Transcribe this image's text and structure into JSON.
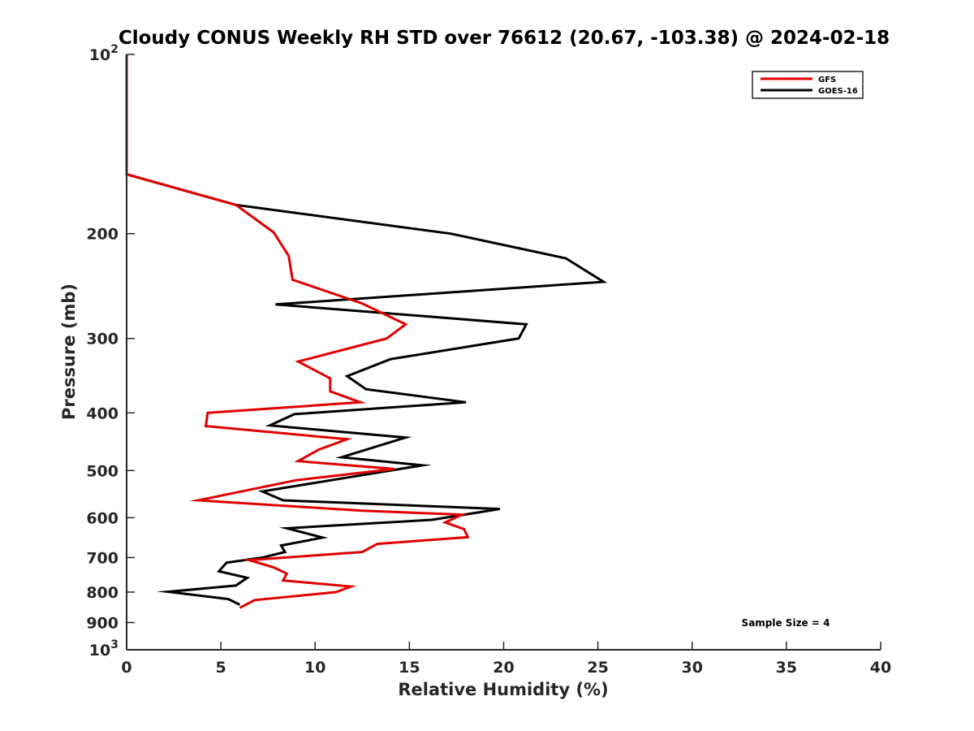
{
  "chart_data": {
    "type": "line",
    "title": "Cloudy CONUS Weekly RH STD over 76612 (20.67, -103.38) @ 2024-02-18",
    "xlabel": "Relative Humidity (%)",
    "ylabel": "Pressure (mb)",
    "xlim": [
      0,
      40
    ],
    "ylim": [
      1000,
      100
    ],
    "yscale": "log",
    "y_reversed": true,
    "grid": false,
    "x_ticks": [
      "0",
      "5",
      "10",
      "15",
      "20",
      "25",
      "30",
      "35",
      "40"
    ],
    "x_tick_values": [
      0,
      5,
      10,
      15,
      20,
      25,
      30,
      35,
      40
    ],
    "y_ticks": [
      {
        "value": 100,
        "base": "10",
        "exp": "2"
      },
      {
        "value": 200,
        "label": "200"
      },
      {
        "value": 300,
        "label": "300"
      },
      {
        "value": 400,
        "label": "400"
      },
      {
        "value": 500,
        "label": "500"
      },
      {
        "value": 600,
        "label": "600"
      },
      {
        "value": 700,
        "label": "700"
      },
      {
        "value": 800,
        "label": "800"
      },
      {
        "value": 900,
        "label": "900"
      },
      {
        "value": 1000,
        "base": "10",
        "exp": "3"
      }
    ],
    "legend": {
      "position": "top-right",
      "entries": [
        "GFS",
        "GOES-16"
      ]
    },
    "annotation": "Sample Size = 4",
    "series": [
      {
        "name": "GFS",
        "color": "#e00000",
        "points": [
          [
            0.0,
            100
          ],
          [
            0.0,
            159
          ],
          [
            5.8,
            179
          ],
          [
            7.8,
            199
          ],
          [
            8.6,
            218
          ],
          [
            8.8,
            239
          ],
          [
            12.5,
            262
          ],
          [
            14.8,
            284
          ],
          [
            13.8,
            300
          ],
          [
            9.1,
            328
          ],
          [
            10.8,
            350
          ],
          [
            10.8,
            368
          ],
          [
            12.4,
            384
          ],
          [
            4.3,
            400
          ],
          [
            4.2,
            421
          ],
          [
            11.7,
            443
          ],
          [
            10.2,
            461
          ],
          [
            9.1,
            482
          ],
          [
            14.2,
            497
          ],
          [
            9.0,
            519
          ],
          [
            3.8,
            561
          ],
          [
            12.5,
            584
          ],
          [
            17.8,
            593
          ],
          [
            16.9,
            611
          ],
          [
            17.9,
            627
          ],
          [
            18.1,
            647
          ],
          [
            13.3,
            664
          ],
          [
            12.5,
            685
          ],
          [
            6.5,
            707
          ],
          [
            7.8,
            727
          ],
          [
            8.5,
            745
          ],
          [
            8.3,
            765
          ],
          [
            11.9,
            783
          ],
          [
            11.1,
            800
          ],
          [
            6.8,
            825
          ],
          [
            6.0,
            850
          ]
        ]
      },
      {
        "name": "GOES-16",
        "color": "#000000",
        "points": [
          [
            0.0,
            100
          ],
          [
            0.0,
            159
          ],
          [
            5.8,
            179
          ],
          [
            17.2,
            200
          ],
          [
            23.3,
            220
          ],
          [
            25.3,
            241
          ],
          [
            7.9,
            263
          ],
          [
            21.2,
            284
          ],
          [
            20.8,
            300
          ],
          [
            14.0,
            325
          ],
          [
            11.7,
            347
          ],
          [
            12.7,
            365
          ],
          [
            18.0,
            384
          ],
          [
            8.9,
            402
          ],
          [
            7.6,
            420
          ],
          [
            14.8,
            440
          ],
          [
            11.4,
            475
          ],
          [
            15.7,
            490
          ],
          [
            7.2,
            542
          ],
          [
            8.3,
            561
          ],
          [
            19.8,
            580
          ],
          [
            16.2,
            605
          ],
          [
            8.5,
            625
          ],
          [
            10.4,
            648
          ],
          [
            8.2,
            668
          ],
          [
            8.4,
            685
          ],
          [
            7.2,
            700
          ],
          [
            5.3,
            714
          ],
          [
            4.9,
            738
          ],
          [
            6.4,
            757
          ],
          [
            5.8,
            780
          ],
          [
            2.2,
            799
          ],
          [
            5.4,
            822
          ],
          [
            6.0,
            840
          ]
        ]
      }
    ]
  }
}
